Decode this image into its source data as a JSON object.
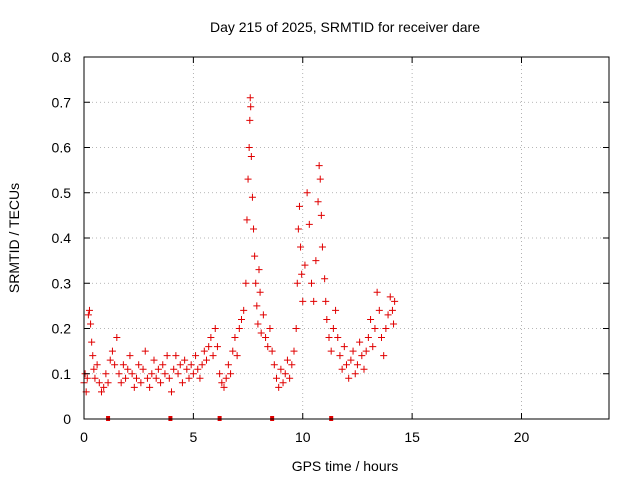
{
  "chart_data": {
    "type": "scatter",
    "title": "Day 215 of 2025, SRMTID for receiver dare",
    "xlabel": "GPS time / hours",
    "ylabel": "SRMTID / TECUs",
    "xlim": [
      0,
      24
    ],
    "ylim": [
      0,
      0.8
    ],
    "x_ticks": [
      0,
      5,
      10,
      15,
      20
    ],
    "x_tick_labels": [
      "0",
      "5",
      "10",
      "15",
      "20"
    ],
    "y_ticks": [
      0,
      0.1,
      0.2,
      0.3,
      0.4,
      0.5,
      0.6,
      0.7,
      0.8
    ],
    "y_tick_labels": [
      "0",
      "0.1",
      "0.2",
      "0.3",
      "0.4",
      "0.5",
      "0.6",
      "0.7",
      "0.8"
    ],
    "grid": true,
    "marker": "+",
    "color": "#e00000",
    "gap_markers_x": [
      1.1,
      3.95,
      6.2,
      8.6,
      11.3
    ],
    "series": [
      {
        "name": "SRMTID",
        "points": [
          [
            0.0,
            0.08
          ],
          [
            0.05,
            0.1
          ],
          [
            0.1,
            0.06
          ],
          [
            0.15,
            0.09
          ],
          [
            0.2,
            0.23
          ],
          [
            0.25,
            0.24
          ],
          [
            0.3,
            0.21
          ],
          [
            0.35,
            0.17
          ],
          [
            0.4,
            0.14
          ],
          [
            0.45,
            0.11
          ],
          [
            0.5,
            0.09
          ],
          [
            0.6,
            0.12
          ],
          [
            0.7,
            0.08
          ],
          [
            0.8,
            0.06
          ],
          [
            0.9,
            0.07
          ],
          [
            1.0,
            0.1
          ],
          [
            1.1,
            0.08
          ],
          [
            1.2,
            0.13
          ],
          [
            1.3,
            0.15
          ],
          [
            1.4,
            0.12
          ],
          [
            1.5,
            0.18
          ],
          [
            1.6,
            0.1
          ],
          [
            1.7,
            0.08
          ],
          [
            1.8,
            0.12
          ],
          [
            1.9,
            0.09
          ],
          [
            2.0,
            0.11
          ],
          [
            2.1,
            0.14
          ],
          [
            2.2,
            0.1
          ],
          [
            2.3,
            0.07
          ],
          [
            2.4,
            0.09
          ],
          [
            2.5,
            0.12
          ],
          [
            2.6,
            0.08
          ],
          [
            2.7,
            0.11
          ],
          [
            2.8,
            0.15
          ],
          [
            2.9,
            0.09
          ],
          [
            3.0,
            0.07
          ],
          [
            3.1,
            0.1
          ],
          [
            3.2,
            0.13
          ],
          [
            3.3,
            0.09
          ],
          [
            3.4,
            0.11
          ],
          [
            3.5,
            0.08
          ],
          [
            3.6,
            0.12
          ],
          [
            3.7,
            0.1
          ],
          [
            3.8,
            0.14
          ],
          [
            3.9,
            0.09
          ],
          [
            4.0,
            0.06
          ],
          [
            4.1,
            0.11
          ],
          [
            4.2,
            0.14
          ],
          [
            4.3,
            0.1
          ],
          [
            4.4,
            0.12
          ],
          [
            4.5,
            0.08
          ],
          [
            4.6,
            0.13
          ],
          [
            4.7,
            0.11
          ],
          [
            4.8,
            0.09
          ],
          [
            4.9,
            0.12
          ],
          [
            5.0,
            0.1
          ],
          [
            5.1,
            0.14
          ],
          [
            5.2,
            0.11
          ],
          [
            5.3,
            0.09
          ],
          [
            5.4,
            0.12
          ],
          [
            5.5,
            0.15
          ],
          [
            5.6,
            0.13
          ],
          [
            5.7,
            0.16
          ],
          [
            5.8,
            0.18
          ],
          [
            5.9,
            0.14
          ],
          [
            6.0,
            0.2
          ],
          [
            6.1,
            0.16
          ],
          [
            6.2,
            0.1
          ],
          [
            6.3,
            0.08
          ],
          [
            6.4,
            0.07
          ],
          [
            6.5,
            0.09
          ],
          [
            6.6,
            0.12
          ],
          [
            6.7,
            0.1
          ],
          [
            6.8,
            0.15
          ],
          [
            6.9,
            0.18
          ],
          [
            7.0,
            0.14
          ],
          [
            7.1,
            0.2
          ],
          [
            7.2,
            0.22
          ],
          [
            7.3,
            0.24
          ],
          [
            7.4,
            0.3
          ],
          [
            7.45,
            0.44
          ],
          [
            7.5,
            0.53
          ],
          [
            7.55,
            0.6
          ],
          [
            7.58,
            0.66
          ],
          [
            7.6,
            0.71
          ],
          [
            7.62,
            0.69
          ],
          [
            7.65,
            0.58
          ],
          [
            7.7,
            0.49
          ],
          [
            7.75,
            0.42
          ],
          [
            7.8,
            0.36
          ],
          [
            7.85,
            0.3
          ],
          [
            7.9,
            0.25
          ],
          [
            7.95,
            0.21
          ],
          [
            8.0,
            0.33
          ],
          [
            8.05,
            0.28
          ],
          [
            8.1,
            0.19
          ],
          [
            8.2,
            0.23
          ],
          [
            8.3,
            0.18
          ],
          [
            8.4,
            0.16
          ],
          [
            8.5,
            0.2
          ],
          [
            8.6,
            0.15
          ],
          [
            8.7,
            0.12
          ],
          [
            8.8,
            0.09
          ],
          [
            8.9,
            0.07
          ],
          [
            9.0,
            0.11
          ],
          [
            9.1,
            0.08
          ],
          [
            9.2,
            0.1
          ],
          [
            9.3,
            0.13
          ],
          [
            9.4,
            0.09
          ],
          [
            9.5,
            0.12
          ],
          [
            9.6,
            0.15
          ],
          [
            9.7,
            0.2
          ],
          [
            9.75,
            0.3
          ],
          [
            9.8,
            0.42
          ],
          [
            9.85,
            0.47
          ],
          [
            9.9,
            0.38
          ],
          [
            9.95,
            0.32
          ],
          [
            10.0,
            0.26
          ],
          [
            10.1,
            0.34
          ],
          [
            10.2,
            0.5
          ],
          [
            10.3,
            0.43
          ],
          [
            10.4,
            0.3
          ],
          [
            10.5,
            0.26
          ],
          [
            10.6,
            0.35
          ],
          [
            10.7,
            0.48
          ],
          [
            10.75,
            0.56
          ],
          [
            10.8,
            0.53
          ],
          [
            10.85,
            0.45
          ],
          [
            10.9,
            0.38
          ],
          [
            11.0,
            0.31
          ],
          [
            11.05,
            0.26
          ],
          [
            11.1,
            0.22
          ],
          [
            11.2,
            0.18
          ],
          [
            11.3,
            0.15
          ],
          [
            11.4,
            0.2
          ],
          [
            11.5,
            0.24
          ],
          [
            11.6,
            0.18
          ],
          [
            11.7,
            0.14
          ],
          [
            11.8,
            0.11
          ],
          [
            11.9,
            0.16
          ],
          [
            12.0,
            0.12
          ],
          [
            12.1,
            0.09
          ],
          [
            12.2,
            0.13
          ],
          [
            12.3,
            0.15
          ],
          [
            12.4,
            0.1
          ],
          [
            12.5,
            0.12
          ],
          [
            12.6,
            0.17
          ],
          [
            12.7,
            0.14
          ],
          [
            12.8,
            0.11
          ],
          [
            12.9,
            0.15
          ],
          [
            13.0,
            0.18
          ],
          [
            13.1,
            0.22
          ],
          [
            13.2,
            0.16
          ],
          [
            13.3,
            0.2
          ],
          [
            13.4,
            0.28
          ],
          [
            13.5,
            0.24
          ],
          [
            13.6,
            0.18
          ],
          [
            13.7,
            0.14
          ],
          [
            13.8,
            0.2
          ],
          [
            13.9,
            0.23
          ],
          [
            14.0,
            0.27
          ],
          [
            14.1,
            0.24
          ],
          [
            14.15,
            0.21
          ],
          [
            14.2,
            0.26
          ]
        ]
      }
    ]
  }
}
